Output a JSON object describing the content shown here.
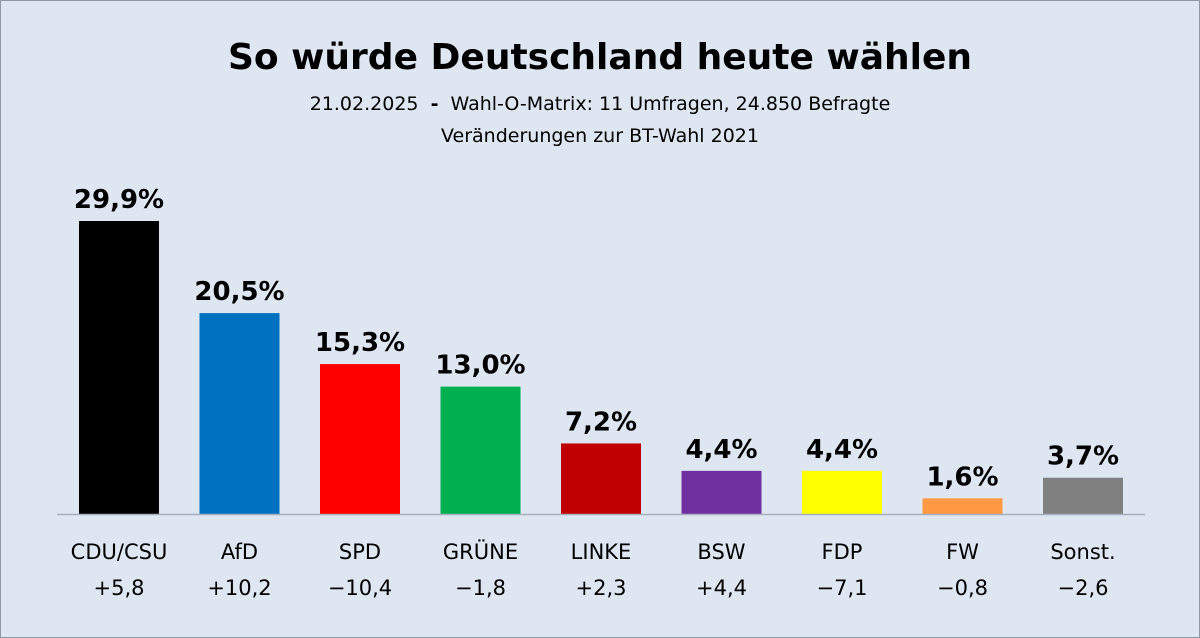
{
  "chart_data": {
    "type": "bar",
    "title": "So würde Deutschland heute wählen",
    "subtitle_date": "21.02.2025",
    "subtitle_separator": "-",
    "subtitle_rest": "Wahl-O-Matrix: 11 Umfragen, 24.850 Befragte",
    "subtitle2": "Veränderungen zur BT-Wahl 2021",
    "categories": [
      "CDU/CSU",
      "AfD",
      "SPD",
      "GRÜNE",
      "LINKE",
      "BSW",
      "FDP",
      "FW",
      "Sonst."
    ],
    "values": [
      29.9,
      20.5,
      15.3,
      13.0,
      7.2,
      4.4,
      4.4,
      1.6,
      3.7
    ],
    "value_labels": [
      "29,9%",
      "20,5%",
      "15,3%",
      "13,0%",
      "7,2%",
      "4,4%",
      "4,4%",
      "1,6%",
      "3,7%"
    ],
    "changes": [
      "+5,8",
      "+10,2",
      "−10,4",
      "−1,8",
      "+2,3",
      "+4,4",
      "−7,1",
      "−0,8",
      "−2,6"
    ],
    "colors": [
      "#000000",
      "#0070c0",
      "#ff0000",
      "#00b050",
      "#c00000",
      "#7030a0",
      "#ffff00",
      "#ff9944",
      "#808080"
    ],
    "ylim": [
      0,
      30
    ],
    "grid": false,
    "legend": "none",
    "xlabel": "",
    "ylabel": ""
  }
}
